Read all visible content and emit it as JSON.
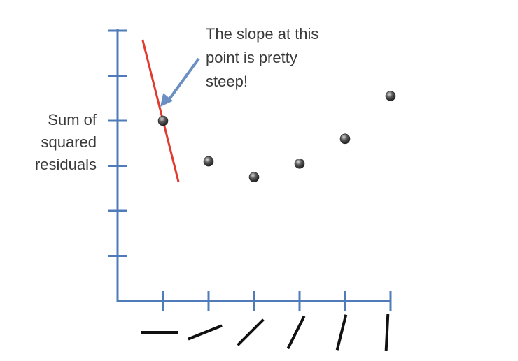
{
  "chart_data": {
    "type": "scatter",
    "ylabel": [
      "Sum of",
      "squared",
      "residuals"
    ],
    "xlabel": "",
    "title": "",
    "x": [
      1,
      2,
      3,
      4,
      5,
      6
    ],
    "y": [
      4.0,
      3.1,
      2.75,
      3.05,
      3.6,
      4.55
    ],
    "xlim": [
      0,
      6
    ],
    "ylim": [
      0,
      6
    ],
    "x_tick_count": 6,
    "y_tick_count": 6,
    "grid": false,
    "tangent_at_point": 1,
    "tangent_slope": -4,
    "x_tick_glyph_slopes": [
      0,
      0.4,
      1.0,
      2.0,
      4.0,
      20.0
    ],
    "annotation": [
      "The slope at this",
      "point is pretty",
      "steep!"
    ],
    "colors": {
      "axis": "#4f7cb8",
      "tangent": "#e23a2e",
      "arrow": "#6b8fc2",
      "points": "#3c3c3c",
      "text": "#3a3a3a",
      "glyph": "#111111"
    }
  }
}
